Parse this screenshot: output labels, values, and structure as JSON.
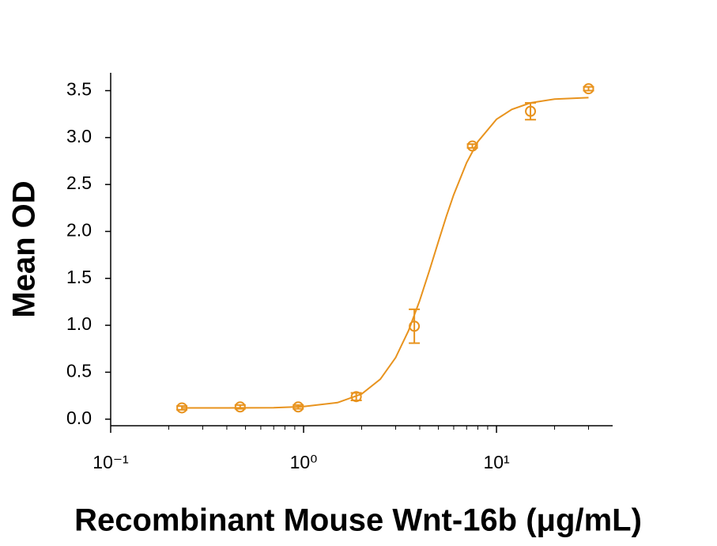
{
  "chart_data": {
    "type": "scatter",
    "x_label": "Recombinant Mouse Wnt-16b (μg/mL)",
    "y_label": "Mean OD",
    "x_scale": "log",
    "color": "#e8931e",
    "x": [
      0.234,
      0.469,
      0.938,
      1.875,
      3.75,
      7.5,
      15,
      30
    ],
    "values": [
      0.12,
      0.13,
      0.13,
      0.24,
      0.99,
      2.91,
      3.28,
      3.52
    ],
    "errors": [
      0.02,
      0.02,
      0.02,
      0.04,
      0.18,
      0.02,
      0.09,
      0.02
    ],
    "curve": {
      "x": [
        0.234,
        0.4,
        0.7,
        1,
        1.5,
        2,
        2.5,
        3,
        3.5,
        4,
        4.5,
        5,
        5.5,
        6,
        7,
        8,
        10,
        12,
        15,
        20,
        30
      ],
      "values": [
        0.12,
        0.12,
        0.121,
        0.134,
        0.176,
        0.268,
        0.426,
        0.656,
        0.943,
        1.265,
        1.588,
        1.893,
        2.162,
        2.39,
        2.733,
        2.956,
        3.195,
        3.3,
        3.37,
        3.41,
        3.425
      ]
    },
    "xlim": [
      0.1,
      40
    ],
    "ylim": [
      -0.07,
      3.69
    ],
    "xticks": [
      {
        "value": 0.1,
        "label": "10⁻¹"
      },
      {
        "value": 1,
        "label": "10⁰"
      },
      {
        "value": 10,
        "label": "10¹"
      }
    ],
    "xminorticks": [
      0.2,
      0.3,
      0.4,
      0.5,
      0.6,
      0.7,
      0.8,
      0.9,
      2,
      3,
      4,
      5,
      6,
      7,
      8,
      9,
      20,
      30
    ],
    "yticks": [
      {
        "value": 0,
        "label": "0.0"
      },
      0.5,
      {
        "value": 1,
        "label": "1.0"
      },
      1.5,
      {
        "value": 2,
        "label": "2.0"
      },
      2.5,
      {
        "value": 3,
        "label": "3.0"
      },
      3.5
    ]
  }
}
